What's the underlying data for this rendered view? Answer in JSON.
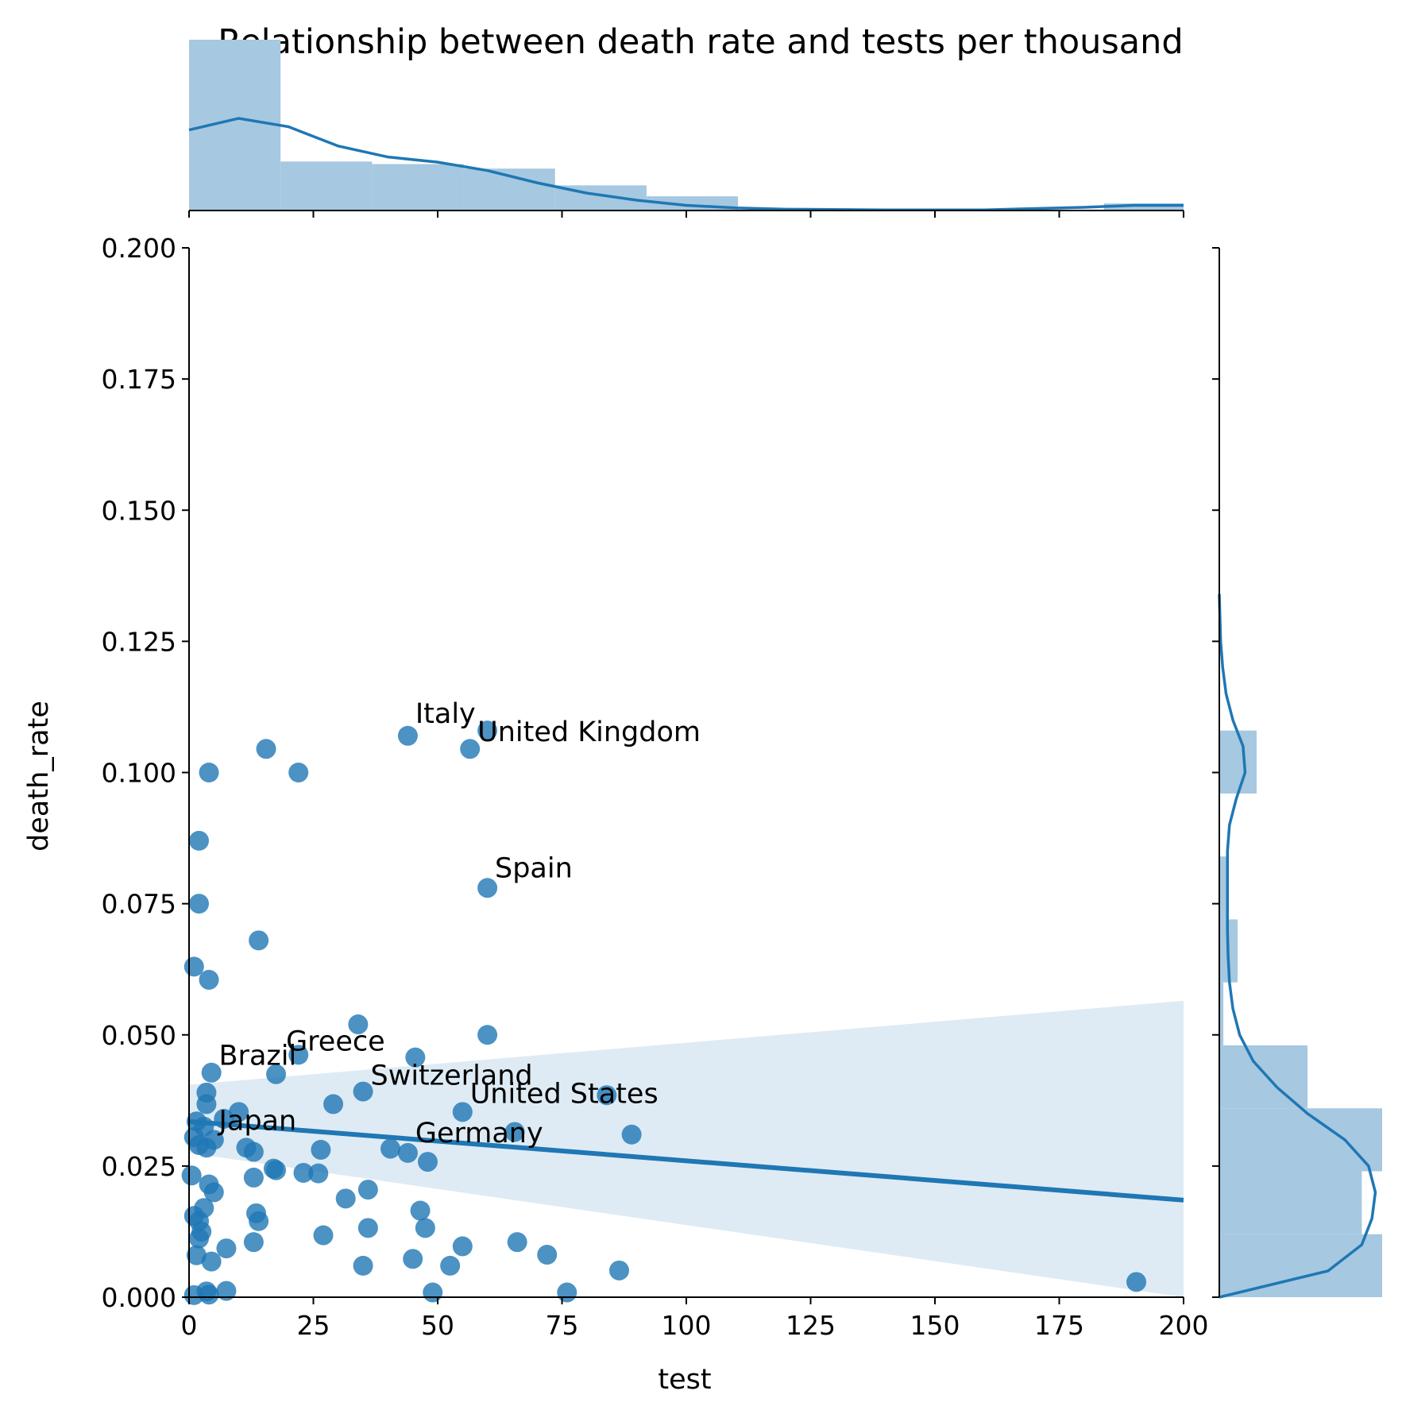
{
  "chart_data": {
    "type": "scatter",
    "title": "Relationship between death rate and tests per thousand",
    "xlabel": "test",
    "ylabel": "death_rate",
    "xlim": [
      0,
      200
    ],
    "ylim": [
      0,
      0.2
    ],
    "xticks": [
      "0",
      "25",
      "50",
      "75",
      "100",
      "125",
      "150",
      "175",
      "200"
    ],
    "xtick_values": [
      0,
      25,
      50,
      75,
      100,
      125,
      150,
      175,
      200
    ],
    "yticks": [
      "0.000",
      "0.025",
      "0.050",
      "0.075",
      "0.100",
      "0.125",
      "0.150",
      "0.175",
      "0.200"
    ],
    "ytick_values": [
      0,
      0.025,
      0.05,
      0.075,
      0.1,
      0.125,
      0.15,
      0.175,
      0.2
    ],
    "grid": false,
    "colors": {
      "points": "#1f77b4",
      "band": "#1f77b4",
      "hist": "#a6c8e0",
      "kde": "#1f77b4"
    },
    "points": [
      [
        44,
        0.107
      ],
      [
        60,
        0.108
      ],
      [
        56.5,
        0.1045
      ],
      [
        15.5,
        0.1045
      ],
      [
        22,
        0.1
      ],
      [
        4,
        0.1
      ],
      [
        2,
        0.087
      ],
      [
        2,
        0.075
      ],
      [
        60,
        0.078
      ],
      [
        14,
        0.068
      ],
      [
        1,
        0.063
      ],
      [
        4,
        0.0605
      ],
      [
        34,
        0.052
      ],
      [
        60,
        0.05
      ],
      [
        45.5,
        0.0457
      ],
      [
        22,
        0.0462
      ],
      [
        17.5,
        0.0425
      ],
      [
        4.5,
        0.0428
      ],
      [
        35,
        0.0392
      ],
      [
        3.5,
        0.039
      ],
      [
        84,
        0.0385
      ],
      [
        29,
        0.0368
      ],
      [
        3.5,
        0.0368
      ],
      [
        55,
        0.0353
      ],
      [
        10,
        0.0353
      ],
      [
        7,
        0.034
      ],
      [
        1.5,
        0.0335
      ],
      [
        3,
        0.0325
      ],
      [
        65.5,
        0.0315
      ],
      [
        89,
        0.031
      ],
      [
        1,
        0.0305
      ],
      [
        5,
        0.03
      ],
      [
        2,
        0.029
      ],
      [
        3.5,
        0.0285
      ],
      [
        11.5,
        0.0285
      ],
      [
        13,
        0.0277
      ],
      [
        26.5,
        0.0281
      ],
      [
        40.5,
        0.0283
      ],
      [
        44,
        0.0275
      ],
      [
        48,
        0.0258
      ],
      [
        17,
        0.0245
      ],
      [
        17.5,
        0.0242
      ],
      [
        23,
        0.0237
      ],
      [
        26,
        0.0236
      ],
      [
        13,
        0.0228
      ],
      [
        0.5,
        0.0232
      ],
      [
        4,
        0.0215
      ],
      [
        5,
        0.02
      ],
      [
        36,
        0.0205
      ],
      [
        31.5,
        0.0188
      ],
      [
        46.5,
        0.0165
      ],
      [
        3,
        0.017
      ],
      [
        13.5,
        0.016
      ],
      [
        14,
        0.0145
      ],
      [
        1,
        0.0155
      ],
      [
        2,
        0.0145
      ],
      [
        47.5,
        0.0132
      ],
      [
        36,
        0.0132
      ],
      [
        2.5,
        0.0125
      ],
      [
        27,
        0.0118
      ],
      [
        2,
        0.0112
      ],
      [
        13,
        0.0105
      ],
      [
        66,
        0.0105
      ],
      [
        55,
        0.0097
      ],
      [
        7.5,
        0.0093
      ],
      [
        1.5,
        0.008
      ],
      [
        72,
        0.0081
      ],
      [
        4.5,
        0.0068
      ],
      [
        45,
        0.0073
      ],
      [
        35,
        0.006
      ],
      [
        52.5,
        0.006
      ],
      [
        86.5,
        0.0051
      ],
      [
        190.5,
        0.0029
      ],
      [
        7.5,
        0.0012
      ],
      [
        3.5,
        0.0011
      ],
      [
        49,
        0.0009
      ],
      [
        76,
        0.0009
      ],
      [
        1,
        0.0004
      ],
      [
        4,
        0.0005
      ]
    ],
    "annotations": [
      {
        "text": "Italy",
        "x": 45.5,
        "y": 0.1095
      },
      {
        "text": "United Kingdom",
        "x": 58,
        "y": 0.106
      },
      {
        "text": "Spain",
        "x": 61.5,
        "y": 0.08
      },
      {
        "text": "Greece",
        "x": 19.5,
        "y": 0.047
      },
      {
        "text": "Brazil",
        "x": 6,
        "y": 0.0443
      },
      {
        "text": "Switzerland",
        "x": 36.5,
        "y": 0.0405
      },
      {
        "text": "United States",
        "x": 56.5,
        "y": 0.037
      },
      {
        "text": "Japan",
        "x": 6,
        "y": 0.0319
      },
      {
        "text": "Germany",
        "x": 45.5,
        "y": 0.0295
      }
    ],
    "regression": {
      "x": [
        0,
        200
      ],
      "y": [
        0.0335,
        0.0185
      ],
      "band_upper": [
        0.0405,
        0.0565
      ],
      "band_lower": [
        0.0275,
        0.0
      ]
    },
    "marginal_x": {
      "bin_edges": [
        0,
        18.4,
        36.8,
        55.2,
        73.6,
        92.0,
        110.4,
        128.8,
        147.2,
        165.6,
        184.0,
        202.4
      ],
      "density": [
        0.0265,
        0.0076,
        0.0072,
        0.0065,
        0.0039,
        0.0022,
        0,
        0,
        0,
        0,
        0.0011
      ],
      "kde_x": [
        0,
        10,
        20,
        30,
        40,
        50,
        60,
        70,
        80,
        90,
        100,
        110,
        120,
        140,
        160,
        180,
        190,
        200
      ],
      "kde_y": [
        0.0125,
        0.0143,
        0.013,
        0.01,
        0.0083,
        0.0075,
        0.0062,
        0.0043,
        0.0027,
        0.0016,
        0.0008,
        0.0004,
        0.0002,
        0.0001,
        0.0001,
        0.0005,
        0.0008,
        0.0008
      ]
    },
    "marginal_y": {
      "bin_edges": [
        0,
        0.012,
        0.024,
        0.036,
        0.048,
        0.06,
        0.072,
        0.084,
        0.096,
        0.108
      ],
      "density": [
        24.0,
        21.0,
        24.0,
        13.0,
        0.6,
        2.7,
        1.4,
        0.0,
        5.5
      ],
      "kde_y": [
        0,
        0.005,
        0.01,
        0.015,
        0.02,
        0.025,
        0.03,
        0.035,
        0.04,
        0.045,
        0.05,
        0.055,
        0.06,
        0.065,
        0.07,
        0.075,
        0.08,
        0.085,
        0.09,
        0.095,
        0.1,
        0.105,
        0.11,
        0.115,
        0.12,
        0.125,
        0.134
      ],
      "kde_x": [
        0,
        16.0,
        21.0,
        22.5,
        23.0,
        22.0,
        18.5,
        13.0,
        8.5,
        5.0,
        3.0,
        2.0,
        1.5,
        1.3,
        1.2,
        1.2,
        1.2,
        1.2,
        1.5,
        2.5,
        3.8,
        3.5,
        2.0,
        1.0,
        0.5,
        0.2,
        0
      ]
    }
  }
}
